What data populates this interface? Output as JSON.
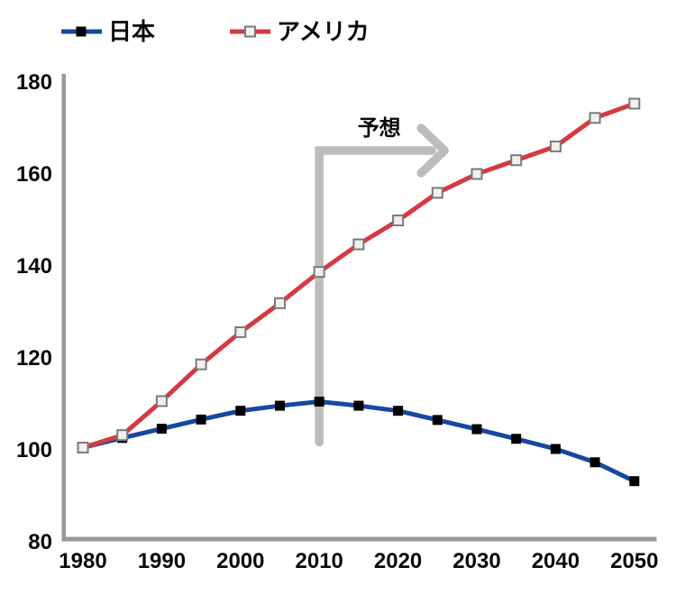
{
  "chart_data": {
    "type": "line",
    "title": "",
    "xlabel": "",
    "ylabel": "",
    "categories": [
      1980,
      1985,
      1990,
      1995,
      2000,
      2005,
      2010,
      2015,
      2020,
      2025,
      2030,
      2035,
      2040,
      2045,
      2050
    ],
    "x_tick_labels": [
      "1980",
      "1990",
      "2000",
      "2010",
      "2020",
      "2030",
      "2040",
      "2050"
    ],
    "y_ticks": [
      80,
      100,
      120,
      140,
      160,
      180
    ],
    "xlim": [
      1980,
      2050
    ],
    "ylim": [
      80,
      180
    ],
    "grid": false,
    "legend_position": "top",
    "axis_color": "#999999",
    "series": [
      {
        "name": "日本",
        "color": "#17479f",
        "marker": "filled-square",
        "marker_color": "#000000",
        "values": [
          100.3,
          102.4,
          104.4,
          106.4,
          108.3,
          109.4,
          110.3,
          109.4,
          108.3,
          106.3,
          104.3,
          102.2,
          100.0,
          97.1,
          93.0
        ]
      },
      {
        "name": "アメリカ",
        "color": "#d43a41",
        "marker": "open-square",
        "marker_fill": "#f2f0ee",
        "marker_stroke": "#7a7a7a",
        "values": [
          100.3,
          103.0,
          110.4,
          118.4,
          125.4,
          131.7,
          138.5,
          144.5,
          149.7,
          155.7,
          159.8,
          162.8,
          165.8,
          172.0,
          175.1
        ]
      }
    ],
    "annotation": {
      "label": "予想",
      "year": 2010,
      "value_bottom": 101.5,
      "value_top": 164.9,
      "arrow_end_year": 2024.3,
      "color": "#bcbcbc"
    }
  }
}
